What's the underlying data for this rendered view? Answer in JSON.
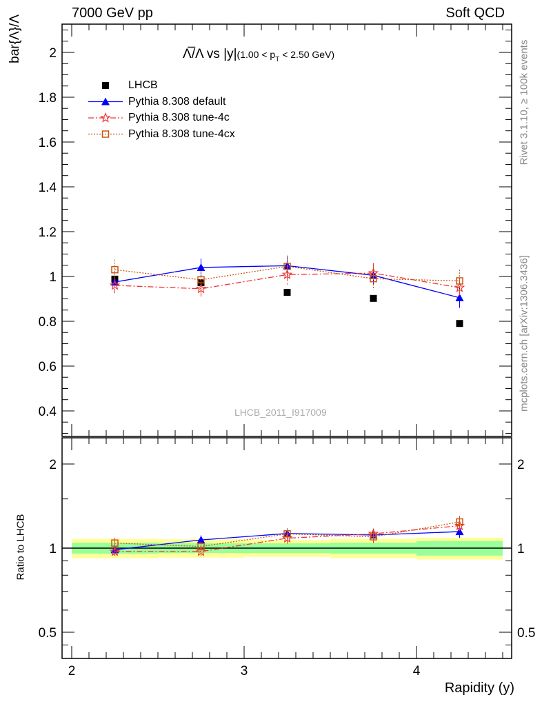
{
  "header": {
    "left": "7000 GeV pp",
    "right": "Soft QCD"
  },
  "side_labels": {
    "rivet": "Rivet 3.1.10, ≥ 100k events",
    "mcplots": "mcplots.cern.ch [arXiv:1306.3436]"
  },
  "watermark": "LHCB_2011_I917009",
  "chart_data": [
    {
      "type": "scatter",
      "title": "Λ̅/Λ vs |y|",
      "subtitle": "(1.00 < p_T < 2.50 GeV)",
      "title_main": "Λ̅/Λ vs |y|",
      "title_sub_a": "(1.00 < p",
      "title_sub_b": "T",
      "title_sub_c": " < 2.50 GeV)",
      "ylabel": "bar{Λ}/Λ",
      "xlim": [
        1.944,
        4.552
      ],
      "ylim": [
        0.286,
        2.126
      ],
      "yticks": [
        0.4,
        0.6,
        0.8,
        1.0,
        1.2,
        1.4,
        1.6,
        1.8,
        2.0
      ],
      "ytick_labels": [
        "0.4",
        "0.6",
        "0.8",
        "1",
        "1.2",
        "1.4",
        "1.6",
        "1.8",
        "2"
      ],
      "x": [
        2.25,
        2.75,
        3.25,
        3.75,
        4.25
      ],
      "series": [
        {
          "name": "LHCB",
          "color": "#000000",
          "marker": "square",
          "values": [
            0.988,
            0.972,
            0.929,
            0.902,
            0.79
          ],
          "errors": [
            0.01,
            0.01,
            0.01,
            0.01,
            0.01
          ]
        },
        {
          "name": "Pythia 8.308 default",
          "color": "#0000ff",
          "marker": "triangle",
          "line": "solid",
          "values": [
            0.975,
            1.04,
            1.048,
            1.005,
            0.905
          ],
          "errors": [
            0.02,
            0.04,
            0.045,
            0.04,
            0.045
          ]
        },
        {
          "name": "Pythia 8.308 tune-4c",
          "color": "#ee3333",
          "marker": "star",
          "line": "dashdot",
          "values": [
            0.96,
            0.945,
            1.008,
            1.015,
            0.95
          ],
          "errors": [
            0.035,
            0.035,
            0.045,
            0.045,
            0.04
          ]
        },
        {
          "name": "Pythia 8.308 tune-4cx",
          "color": "#cc5511",
          "marker": "opensquare",
          "line": "dotted",
          "values": [
            1.03,
            0.985,
            1.045,
            0.99,
            0.98
          ],
          "errors": [
            0.045,
            0.04,
            0.045,
            0.05,
            0.05
          ]
        }
      ]
    },
    {
      "type": "scatter",
      "ylabel": "Ratio to LHCB",
      "xlabel": "Rapidity (y)",
      "yscale": "log",
      "ylim": [
        0.403,
        2.48
      ],
      "yticks": [
        0.5,
        1,
        2
      ],
      "ytick_labels": [
        "0.5",
        "1",
        "2"
      ],
      "xticks": [
        2,
        3,
        4
      ],
      "xtick_labels": [
        "2",
        "3",
        "4"
      ],
      "bins": [
        [
          2.0,
          2.5
        ],
        [
          2.5,
          3.0
        ],
        [
          3.0,
          3.5
        ],
        [
          3.5,
          4.0
        ],
        [
          4.0,
          4.5
        ]
      ],
      "stat_band": [
        0.045,
        0.04,
        0.04,
        0.045,
        0.06
      ],
      "total_band": [
        0.08,
        0.075,
        0.07,
        0.08,
        0.09
      ]
    }
  ]
}
